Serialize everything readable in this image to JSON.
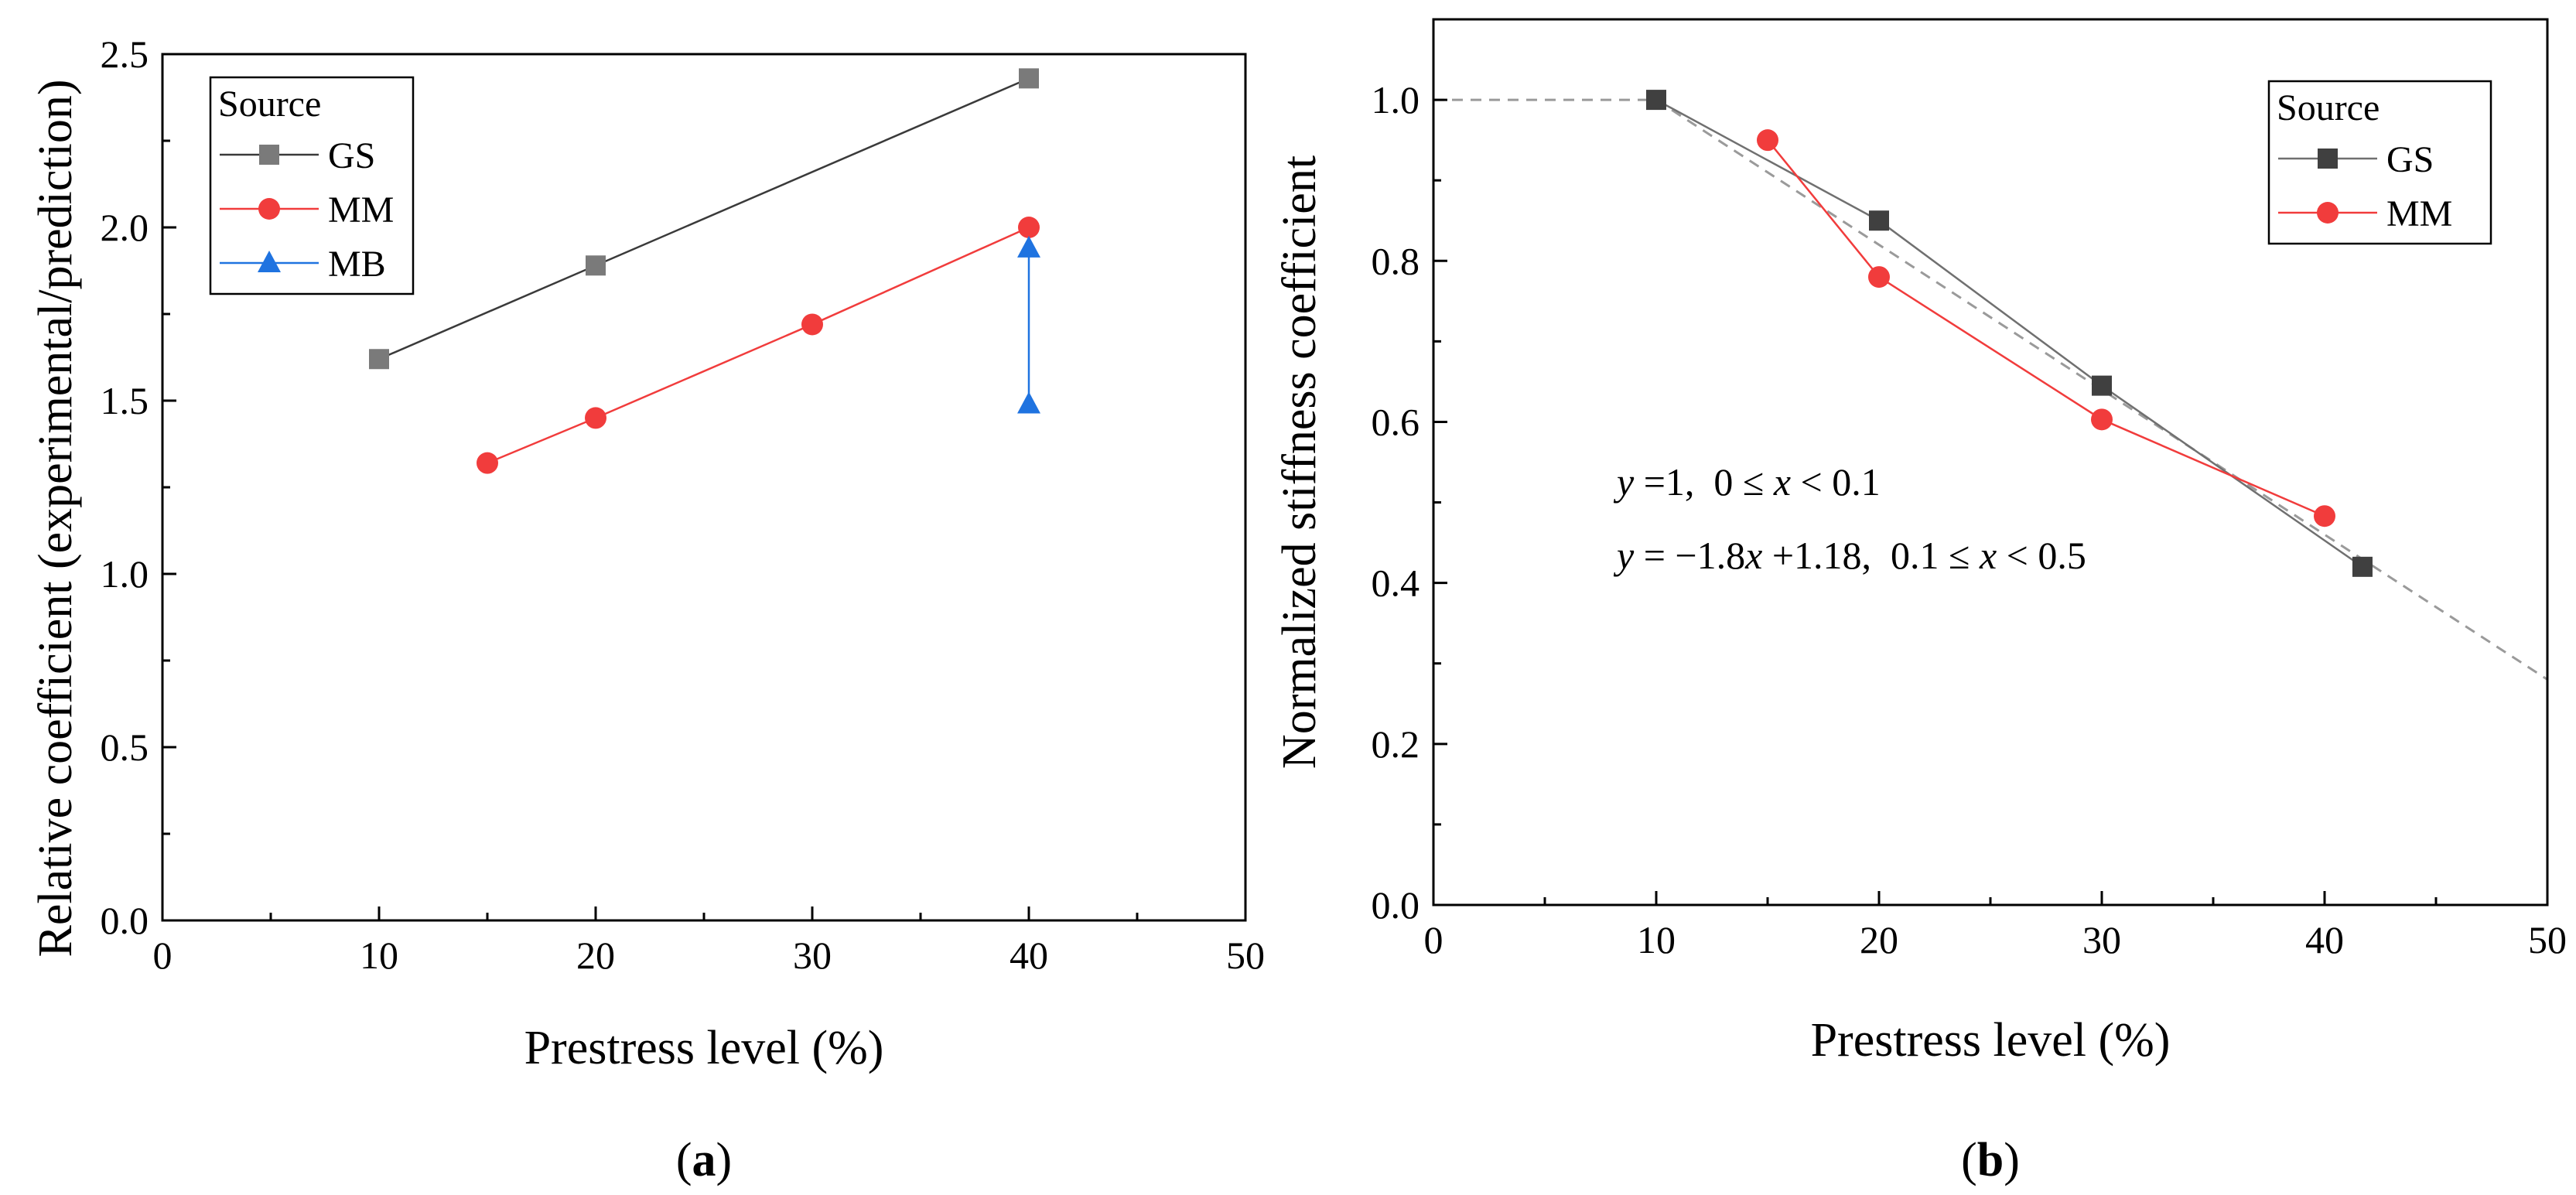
{
  "chart_data": [
    {
      "type": "line",
      "panel_label": "a",
      "xlabel": "Prestress level (%)",
      "ylabel": "Relative coefficient (experimental/prediction)",
      "xlim": [
        0,
        50
      ],
      "ylim": [
        0,
        2.5
      ],
      "xticks": [
        0,
        10,
        20,
        30,
        40,
        50
      ],
      "yticks": [
        0.0,
        0.5,
        1.0,
        1.5,
        2.0,
        2.5
      ],
      "xtick_labels": [
        "0",
        "10",
        "20",
        "30",
        "40",
        "50"
      ],
      "ytick_labels": [
        "0.0",
        "0.5",
        "1.0",
        "1.5",
        "2.0",
        "2.5"
      ],
      "legend": {
        "title": "Source",
        "position": "top-left"
      },
      "series": [
        {
          "name": "GS",
          "marker": "square",
          "color": "#7a7a7a",
          "line_color": "#3a3a3a",
          "x": [
            10,
            20,
            40
          ],
          "y": [
            1.62,
            1.89,
            2.43
          ]
        },
        {
          "name": "MM",
          "marker": "circle",
          "color": "#f13c3c",
          "line_color": "#f13c3c",
          "x": [
            15,
            20,
            30,
            40
          ],
          "y": [
            1.32,
            1.45,
            1.72,
            2.0
          ]
        },
        {
          "name": "MB",
          "marker": "triangle",
          "color": "#1f73e0",
          "line_color": "#1f73e0",
          "x": [
            40,
            40
          ],
          "y": [
            1.94,
            1.49
          ]
        }
      ]
    },
    {
      "type": "line",
      "panel_label": "b",
      "xlabel": "Prestress level (%)",
      "ylabel": "Normalized stiffness coefficient",
      "xlim": [
        0,
        50
      ],
      "ylim": [
        0,
        1.1
      ],
      "xticks": [
        0,
        10,
        20,
        30,
        40,
        50
      ],
      "yticks": [
        0.0,
        0.2,
        0.4,
        0.6,
        0.8,
        1.0
      ],
      "xtick_labels": [
        "0",
        "10",
        "20",
        "30",
        "40",
        "50"
      ],
      "ytick_labels": [
        "0.0",
        "0.2",
        "0.4",
        "0.6",
        "0.8",
        "1.0"
      ],
      "legend": {
        "title": "Source",
        "position": "top-right"
      },
      "series": [
        {
          "name": "GS",
          "marker": "square",
          "color": "#404040",
          "line_color": "#707070",
          "x": [
            10,
            20,
            30,
            41.7
          ],
          "y": [
            1.0,
            0.85,
            0.645,
            0.42
          ]
        },
        {
          "name": "MM",
          "marker": "circle",
          "color": "#f13c3c",
          "line_color": "#f13c3c",
          "x": [
            15,
            20,
            30,
            40
          ],
          "y": [
            0.95,
            0.78,
            0.603,
            0.483
          ]
        }
      ],
      "fit": {
        "style": "dashed",
        "color": "#9a9a9a",
        "x": [
          0,
          10,
          50
        ],
        "y": [
          1.0,
          1.0,
          0.28
        ]
      },
      "annotations": [
        {
          "var": "y",
          "mid": " =1,  0 ≤ ",
          "var2": "x",
          "tail": " < 0.1"
        },
        {
          "var": "y",
          "mid": " = −1.8",
          "var2": "x",
          "tail": " +1.18,  0.1 ≤ ",
          "var3": "x",
          "tail2": " < 0.5"
        }
      ]
    }
  ]
}
